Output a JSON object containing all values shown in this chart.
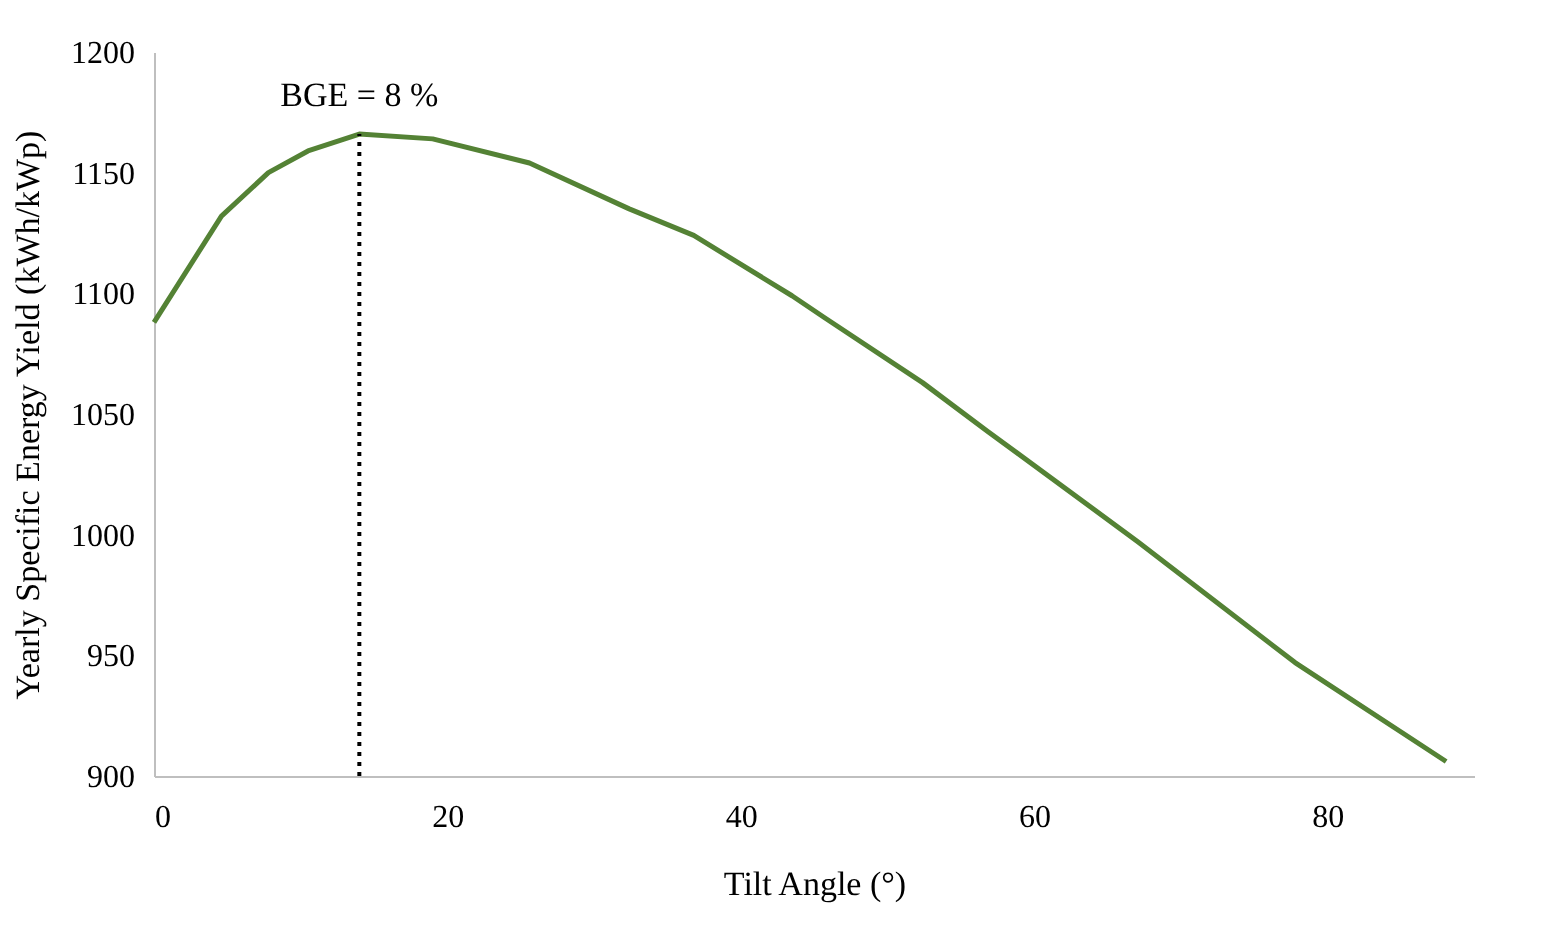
{
  "chart_data": {
    "type": "line",
    "xlabel": "Tilt Angle (°)",
    "ylabel": "Yearly Specific Energy Yield (kWh/kWp)",
    "x": [
      0,
      4.6,
      7.8,
      10.5,
      14,
      19,
      25.6,
      32.4,
      36.8,
      43.5,
      45.7,
      52.4,
      56.8,
      67.1,
      77.8,
      88.1
    ],
    "series": [
      {
        "color": "#548235",
        "values": [
          1088,
          1132,
          1150,
          1159,
          1166,
          1164,
          1154,
          1135,
          1124,
          1099,
          1090,
          1063,
          1043,
          997,
          947,
          906
        ]
      }
    ],
    "xlim": [
      0,
      90
    ],
    "xticks": [
      0,
      20,
      40,
      60,
      80
    ],
    "ylim": [
      900,
      1200
    ],
    "yticks": [
      900,
      950,
      1000,
      1050,
      1100,
      1150,
      1200
    ],
    "grid": false,
    "marker": "none",
    "line_style": "solid",
    "ref_lines": [
      {
        "axis": "x",
        "value": 14,
        "color": "#000000",
        "line_style": "dotted"
      }
    ],
    "annotations": [
      {
        "text": "BGE = 8 %",
        "x": 14,
        "y": 1166
      }
    ]
  }
}
